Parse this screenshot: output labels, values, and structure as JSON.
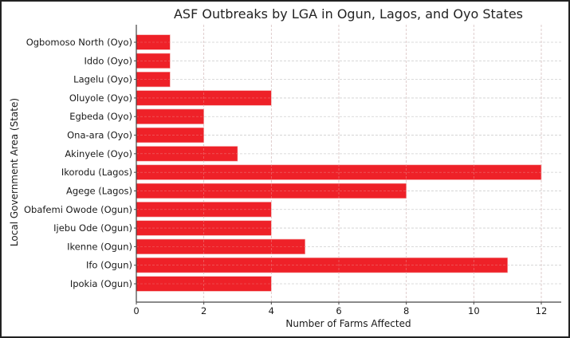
{
  "chart_data": {
    "type": "bar",
    "orientation": "horizontal",
    "title": "ASF Outbreaks by LGA in Ogun, Lagos, and Oyo States",
    "xlabel": "Number of Farms Affected",
    "ylabel": "Local Government Area (State)",
    "categories": [
      "Ipokia (Ogun)",
      "Ifo (Ogun)",
      "Ikenne (Ogun)",
      "Ijebu Ode (Ogun)",
      "Obafemi Owode (Ogun)",
      "Agege (Lagos)",
      "Ikorodu (Lagos)",
      "Akinyele (Oyo)",
      "Ona-ara (Oyo)",
      "Egbeda (Oyo)",
      "Oluyole (Oyo)",
      "Lagelu (Oyo)",
      "Iddo (Oyo)",
      "Ogbomoso North (Oyo)"
    ],
    "values": [
      4,
      11,
      5,
      4,
      4,
      8,
      12,
      3,
      2,
      2,
      4,
      1,
      1,
      1
    ],
    "category_order": "bottom-to-top",
    "xlim": [
      0,
      12.6
    ],
    "xticks": [
      0,
      2,
      4,
      6,
      8,
      10,
      12
    ],
    "xtick_labels": [
      "0",
      "2",
      "4",
      "6",
      "8",
      "10",
      "12"
    ],
    "grid": true,
    "grid_style": "dashed",
    "legend": "none",
    "bar_color": "#ee2128"
  }
}
